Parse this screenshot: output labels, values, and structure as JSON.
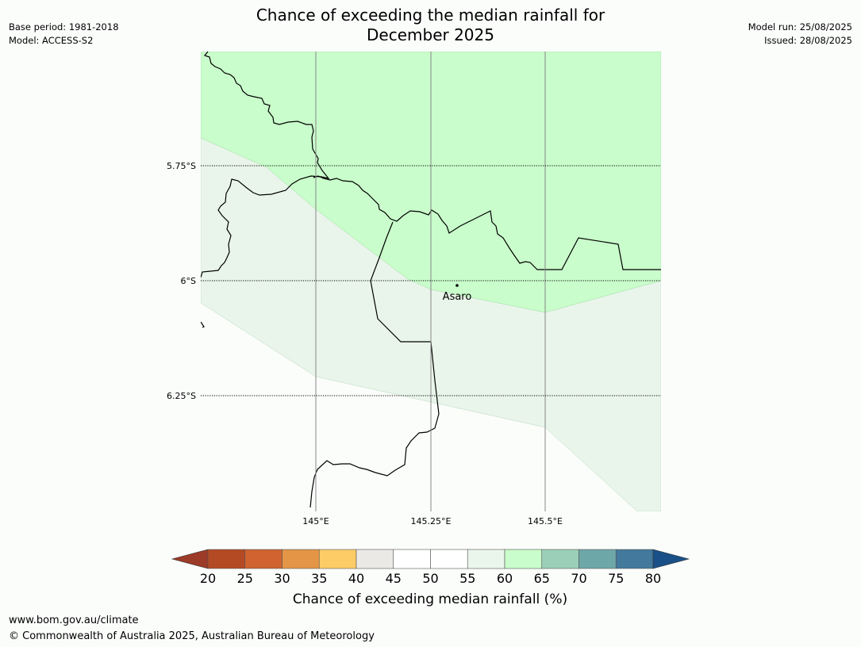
{
  "header": {
    "title_line1": "Chance of exceeding the median rainfall for",
    "title_line2": "December 2025",
    "base_period": "Base period: 1981-2018",
    "model": "Model: ACCESS-S2",
    "model_run": "Model run: 25/08/2025",
    "issued": "Issued: 28/08/2025"
  },
  "map": {
    "lat_labels": [
      "5.75°S",
      "6°S",
      "6.25°S"
    ],
    "lon_labels": [
      "145°E",
      "145.25°E",
      "145.5°E"
    ],
    "place_label": "Asaro",
    "colors": {
      "green_60_65": "#c9fdcb",
      "light_55_60": "#e9f5ea",
      "white_50_55": "#fbfdfb"
    }
  },
  "colorbar": {
    "ticks": [
      "20",
      "25",
      "30",
      "35",
      "40",
      "45",
      "50",
      "55",
      "60",
      "65",
      "70",
      "75",
      "80"
    ],
    "colors": [
      "#9c3b27",
      "#b44a24",
      "#d06330",
      "#e49545",
      "#fdcc66",
      "#ebe9e5",
      "#ffffff",
      "#ffffff",
      "#eaf6eb",
      "#c9fdcb",
      "#9ccfb8",
      "#6ea7a8",
      "#42799c",
      "#195087"
    ],
    "label": "Chance of exceeding median rainfall (%)"
  },
  "footer": {
    "url": "www.bom.gov.au/climate",
    "copyright": "© Commonwealth of Australia 2025, Australian Bureau of Meteorology"
  }
}
